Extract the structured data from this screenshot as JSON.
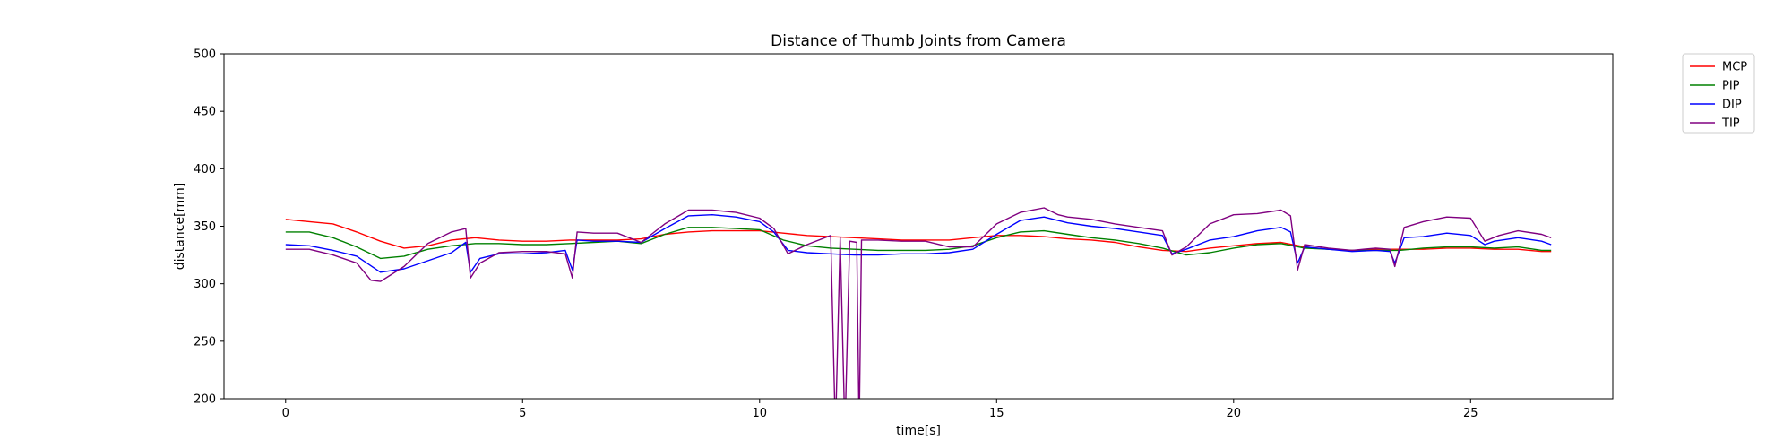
{
  "chart_data": {
    "type": "line",
    "title": "Distance of Thumb Joints from Camera",
    "xlabel": "time[s]",
    "ylabel": "distance[mm]",
    "xlim": [
      -1.3,
      28.0
    ],
    "ylim": [
      200,
      500
    ],
    "x_ticks": [
      0,
      5,
      10,
      15,
      20,
      25
    ],
    "y_ticks": [
      200,
      250,
      300,
      350,
      400,
      450,
      500
    ],
    "grid": false,
    "legend_position": "outside-top-right",
    "series": [
      {
        "name": "MCP",
        "color": "#ff0000",
        "points": [
          [
            0,
            356
          ],
          [
            0.5,
            354
          ],
          [
            1,
            352
          ],
          [
            1.5,
            345
          ],
          [
            2,
            337
          ],
          [
            2.5,
            331
          ],
          [
            3,
            333
          ],
          [
            3.5,
            338
          ],
          [
            4,
            340
          ],
          [
            4.5,
            338
          ],
          [
            5,
            337
          ],
          [
            5.5,
            337
          ],
          [
            6,
            338
          ],
          [
            6.5,
            338
          ],
          [
            7,
            338
          ],
          [
            7.5,
            339
          ],
          [
            8,
            343
          ],
          [
            8.5,
            345
          ],
          [
            9,
            346
          ],
          [
            9.5,
            346
          ],
          [
            10,
            346
          ],
          [
            10.5,
            344
          ],
          [
            11,
            342
          ],
          [
            11.5,
            341
          ],
          [
            12,
            340
          ],
          [
            12.5,
            339
          ],
          [
            13,
            338
          ],
          [
            13.5,
            338
          ],
          [
            14,
            338
          ],
          [
            14.5,
            340
          ],
          [
            15,
            342
          ],
          [
            15.5,
            342
          ],
          [
            16,
            341
          ],
          [
            16.5,
            339
          ],
          [
            17,
            338
          ],
          [
            17.5,
            336
          ],
          [
            18,
            332
          ],
          [
            18.5,
            329
          ],
          [
            19,
            328
          ],
          [
            19.5,
            331
          ],
          [
            20,
            333
          ],
          [
            20.5,
            335
          ],
          [
            21,
            336
          ],
          [
            21.5,
            332
          ],
          [
            22,
            330
          ],
          [
            22.5,
            329
          ],
          [
            23,
            330
          ],
          [
            23.5,
            330
          ],
          [
            24,
            330
          ],
          [
            24.5,
            331
          ],
          [
            25,
            331
          ],
          [
            25.5,
            330
          ],
          [
            26,
            330
          ],
          [
            26.5,
            328
          ],
          [
            26.7,
            328
          ]
        ]
      },
      {
        "name": "PIP",
        "color": "#008000",
        "points": [
          [
            0,
            345
          ],
          [
            0.5,
            345
          ],
          [
            1,
            340
          ],
          [
            1.5,
            332
          ],
          [
            2,
            322
          ],
          [
            2.5,
            324
          ],
          [
            3,
            330
          ],
          [
            3.5,
            333
          ],
          [
            4,
            335
          ],
          [
            4.5,
            335
          ],
          [
            5,
            334
          ],
          [
            5.5,
            334
          ],
          [
            6,
            335
          ],
          [
            6.5,
            336
          ],
          [
            7,
            337
          ],
          [
            7.5,
            335
          ],
          [
            8,
            343
          ],
          [
            8.5,
            349
          ],
          [
            9,
            349
          ],
          [
            9.5,
            348
          ],
          [
            10,
            347
          ],
          [
            10.5,
            338
          ],
          [
            11,
            333
          ],
          [
            11.5,
            331
          ],
          [
            12,
            330
          ],
          [
            12.5,
            329
          ],
          [
            13,
            329
          ],
          [
            13.5,
            329
          ],
          [
            14,
            330
          ],
          [
            14.5,
            333
          ],
          [
            15,
            340
          ],
          [
            15.5,
            345
          ],
          [
            16,
            346
          ],
          [
            16.5,
            343
          ],
          [
            17,
            340
          ],
          [
            17.5,
            338
          ],
          [
            18,
            335
          ],
          [
            18.5,
            331
          ],
          [
            19,
            325
          ],
          [
            19.5,
            327
          ],
          [
            20,
            331
          ],
          [
            20.5,
            334
          ],
          [
            21,
            335
          ],
          [
            21.5,
            331
          ],
          [
            22,
            330
          ],
          [
            22.5,
            329
          ],
          [
            23,
            329
          ],
          [
            23.5,
            329
          ],
          [
            24,
            331
          ],
          [
            24.5,
            332
          ],
          [
            25,
            332
          ],
          [
            25.5,
            331
          ],
          [
            26,
            332
          ],
          [
            26.5,
            329
          ],
          [
            26.7,
            329
          ]
        ]
      },
      {
        "name": "DIP",
        "color": "#0000ff",
        "points": [
          [
            0,
            334
          ],
          [
            0.5,
            333
          ],
          [
            1,
            329
          ],
          [
            1.5,
            324
          ],
          [
            2,
            310
          ],
          [
            2.5,
            313
          ],
          [
            3,
            320
          ],
          [
            3.5,
            327
          ],
          [
            3.8,
            336
          ],
          [
            3.9,
            310
          ],
          [
            4.1,
            322
          ],
          [
            4.5,
            326
          ],
          [
            5,
            326
          ],
          [
            5.5,
            327
          ],
          [
            5.9,
            329
          ],
          [
            6.05,
            312
          ],
          [
            6.15,
            338
          ],
          [
            6.5,
            337
          ],
          [
            7,
            337
          ],
          [
            7.5,
            336
          ],
          [
            8,
            348
          ],
          [
            8.5,
            359
          ],
          [
            9,
            360
          ],
          [
            9.5,
            358
          ],
          [
            10,
            354
          ],
          [
            10.3,
            345
          ],
          [
            10.6,
            329
          ],
          [
            11,
            327
          ],
          [
            11.5,
            326
          ],
          [
            12,
            325
          ],
          [
            12.5,
            325
          ],
          [
            13,
            326
          ],
          [
            13.5,
            326
          ],
          [
            14,
            327
          ],
          [
            14.5,
            330
          ],
          [
            15,
            343
          ],
          [
            15.5,
            355
          ],
          [
            16,
            358
          ],
          [
            16.5,
            353
          ],
          [
            17,
            350
          ],
          [
            17.5,
            348
          ],
          [
            18,
            345
          ],
          [
            18.5,
            342
          ],
          [
            18.7,
            326
          ],
          [
            19,
            330
          ],
          [
            19.5,
            338
          ],
          [
            20,
            341
          ],
          [
            20.5,
            346
          ],
          [
            21,
            349
          ],
          [
            21.2,
            345
          ],
          [
            21.35,
            318
          ],
          [
            21.5,
            332
          ],
          [
            22,
            330
          ],
          [
            22.5,
            328
          ],
          [
            23,
            329
          ],
          [
            23.3,
            328
          ],
          [
            23.4,
            318
          ],
          [
            23.6,
            340
          ],
          [
            24,
            341
          ],
          [
            24.5,
            344
          ],
          [
            25,
            342
          ],
          [
            25.3,
            334
          ],
          [
            25.5,
            337
          ],
          [
            26,
            340
          ],
          [
            26.5,
            337
          ],
          [
            26.7,
            334
          ]
        ]
      },
      {
        "name": "TIP",
        "color": "#800080",
        "points": [
          [
            0,
            330
          ],
          [
            0.5,
            330
          ],
          [
            1,
            325
          ],
          [
            1.5,
            318
          ],
          [
            1.8,
            303
          ],
          [
            2,
            302
          ],
          [
            2.5,
            315
          ],
          [
            3,
            335
          ],
          [
            3.5,
            345
          ],
          [
            3.8,
            348
          ],
          [
            3.9,
            305
          ],
          [
            4.1,
            318
          ],
          [
            4.5,
            327
          ],
          [
            5,
            328
          ],
          [
            5.5,
            328
          ],
          [
            5.9,
            326
          ],
          [
            6.05,
            305
          ],
          [
            6.15,
            345
          ],
          [
            6.5,
            344
          ],
          [
            7,
            344
          ],
          [
            7.5,
            336
          ],
          [
            8,
            352
          ],
          [
            8.5,
            364
          ],
          [
            9,
            364
          ],
          [
            9.5,
            362
          ],
          [
            10,
            357
          ],
          [
            10.3,
            348
          ],
          [
            10.6,
            326
          ],
          [
            11,
            334
          ],
          [
            11.5,
            342
          ],
          [
            11.6,
            170
          ],
          [
            11.7,
            340
          ],
          [
            11.8,
            170
          ],
          [
            11.9,
            337
          ],
          [
            12.05,
            336
          ],
          [
            12.1,
            170
          ],
          [
            12.15,
            338
          ],
          [
            12.5,
            338
          ],
          [
            13,
            337
          ],
          [
            13.5,
            337
          ],
          [
            14,
            332
          ],
          [
            14.5,
            332
          ],
          [
            15,
            352
          ],
          [
            15.5,
            362
          ],
          [
            16,
            366
          ],
          [
            16.3,
            360
          ],
          [
            16.5,
            358
          ],
          [
            17,
            356
          ],
          [
            17.5,
            352
          ],
          [
            18,
            349
          ],
          [
            18.5,
            346
          ],
          [
            18.7,
            325
          ],
          [
            19,
            332
          ],
          [
            19.5,
            352
          ],
          [
            20,
            360
          ],
          [
            20.5,
            361
          ],
          [
            21,
            364
          ],
          [
            21.2,
            359
          ],
          [
            21.35,
            312
          ],
          [
            21.5,
            334
          ],
          [
            22,
            331
          ],
          [
            22.5,
            329
          ],
          [
            23,
            331
          ],
          [
            23.3,
            330
          ],
          [
            23.4,
            315
          ],
          [
            23.6,
            349
          ],
          [
            24,
            354
          ],
          [
            24.5,
            358
          ],
          [
            25,
            357
          ],
          [
            25.3,
            337
          ],
          [
            25.6,
            342
          ],
          [
            26,
            346
          ],
          [
            26.5,
            343
          ],
          [
            26.7,
            340
          ]
        ]
      }
    ]
  }
}
